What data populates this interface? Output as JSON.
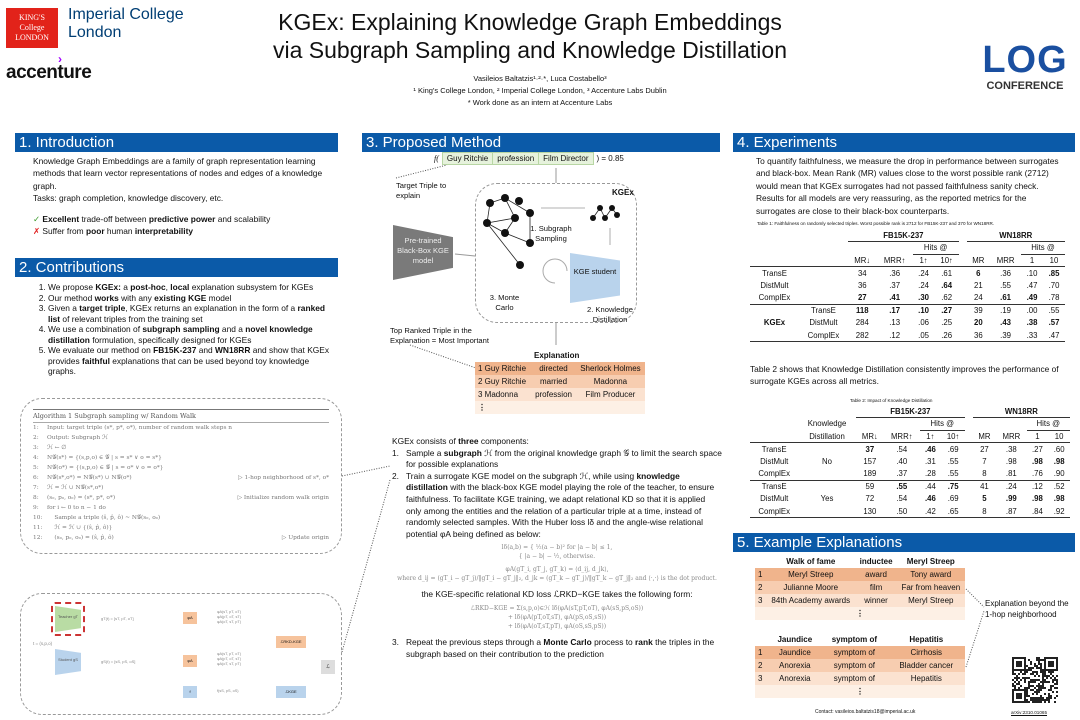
{
  "header": {
    "logos": {
      "kings": "KING'S College LONDON",
      "imperial": "Imperial College London",
      "accenture": "accenture",
      "log": "LOG",
      "log_sub": "CONFERENCE"
    },
    "title_line1": "KGEx: Explaining Knowledge Graph Embeddings",
    "title_line2": "via Subgraph Sampling and Knowledge Distillation",
    "authors": "Vasileios Baltatzis¹·²·*, Luca Costabello³",
    "affiliations": "¹ King's College London, ² Imperial College London, ³ Accenture Labs Dublin",
    "note": "* Work done as an intern at Accenture Labs"
  },
  "intro": {
    "title": "1. Introduction",
    "para": "Knowledge Graph Embeddings are a family of graph representation learning methods that learn vector representations of nodes and edges of a knowledge graph.",
    "tasks": "Tasks: graph completion, knowledge discovery, etc.",
    "pro": [
      {
        "t": "Excellent",
        "b": true
      },
      {
        "t": " trade-off between "
      },
      {
        "t": "predictive power",
        "b": true
      },
      {
        "t": " and scalability"
      }
    ],
    "con": [
      {
        "t": "Suffer from "
      },
      {
        "t": "poor",
        "b": true
      },
      {
        "t": " human "
      },
      {
        "t": "interpretability",
        "b": true
      }
    ],
    "check_color": "#3a9a2a",
    "cross_color": "#e02020"
  },
  "contrib": {
    "title": "2. Contributions",
    "items": [
      [
        {
          "t": "We propose "
        },
        {
          "t": "KGEx:",
          "b": true
        },
        {
          "t": " a "
        },
        {
          "t": "post-hoc",
          "b": true
        },
        {
          "t": ", "
        },
        {
          "t": "local",
          "b": true
        },
        {
          "t": " explanation subsystem for KGEs"
        }
      ],
      [
        {
          "t": "Our method "
        },
        {
          "t": "works",
          "b": true
        },
        {
          "t": " with any "
        },
        {
          "t": "existing KGE",
          "b": true
        },
        {
          "t": " model"
        }
      ],
      [
        {
          "t": "Given a "
        },
        {
          "t": "target triple",
          "b": true
        },
        {
          "t": ", KGEx returns an explanation in the form of a "
        },
        {
          "t": "ranked list",
          "b": true
        },
        {
          "t": " of relevant triples from the training set"
        }
      ],
      [
        {
          "t": "We use a combination of "
        },
        {
          "t": "subgraph sampling",
          "b": true
        },
        {
          "t": " and a "
        },
        {
          "t": "novel knowledge distillation",
          "b": true
        },
        {
          "t": " formulation, specifically designed for KGEs"
        }
      ],
      [
        {
          "t": "We evaluate our method on "
        },
        {
          "t": "FB15K-237",
          "b": true
        },
        {
          "t": " and "
        },
        {
          "t": "WN18RR",
          "b": true
        },
        {
          "t": " and show that KGEx provides "
        },
        {
          "t": "faithful",
          "b": true
        },
        {
          "t": " explanations that  can be used beyond toy knowledge graphs."
        }
      ]
    ]
  },
  "algorithm": {
    "title": "Algorithm 1 Subgraph sampling w/ Random Walk",
    "lines": [
      {
        "n": "1:",
        "t": "Input: target triple (s*, p*, o*), number of random walk steps n",
        "c": ""
      },
      {
        "n": "2:",
        "t": "Output: Subgraph ℋ",
        "c": ""
      },
      {
        "n": "3:",
        "t": "ℋ ← ∅",
        "c": ""
      },
      {
        "n": "4:",
        "t": "N𝒢(s*) = {(s,p,o) ∈ 𝒢 | s = s* ∨ o = s*}",
        "c": ""
      },
      {
        "n": "5:",
        "t": "N𝒢(o*) = {(s,p,o) ∈ 𝒢 | s = o* ∨ o = o*}",
        "c": ""
      },
      {
        "n": "6:",
        "t": "N𝒢(s*,o*) = N𝒢(s*) ∪ N𝒢(o*)",
        "c": "▷ 1-hop neighborhood of s*, o*"
      },
      {
        "n": "7:",
        "t": "ℋ = ℋ ∪ N𝒢(s*,o*)",
        "c": ""
      },
      {
        "n": "8:",
        "t": "(sₒ, pₒ, oₒ) = (s*, p*, o*)",
        "c": "▷ Initialize random walk origin"
      },
      {
        "n": "9:",
        "t": "for i ← 0 to n − 1 do",
        "c": ""
      },
      {
        "n": "10:",
        "t": "    Sample a triple (ŝ, p̂, ô) ~ N𝒢(sₒ, oₒ)",
        "c": ""
      },
      {
        "n": "11:",
        "t": "    ℋ = ℋ ∪ {(ŝ, p̂, ô)}",
        "c": ""
      },
      {
        "n": "12:",
        "t": "    (sₒ, pₒ, oₒ) = (ŝ, p̂, ô)",
        "c": "▷ Update origin"
      }
    ]
  },
  "kd_diagram": {
    "teacher": "Teacher gT",
    "student": "Student gS",
    "input": "t = (s,p,o)",
    "gt": "gT(t) = [sT, pT, oT]",
    "gs": "gS(t) = [sS, pS, oS]",
    "phi": "φA",
    "f": "f",
    "fs": "f(sS, pS, oS)",
    "lrkd": "ℒRKD-KGE",
    "lkge": "ℒKGE",
    "l": "ℒ",
    "phi_lines": [
      "φA(sT, pT, oT)",
      "φA(pT, oT, sT)",
      "φA(oT, sT, pT)"
    ],
    "teacher_color": "#b9dca4",
    "student_color": "#b9d3ec",
    "op_color": "#f6c39c"
  },
  "method": {
    "title": "3. Proposed Method",
    "f_prefix": "f(",
    "triple": [
      "Guy Ritchie",
      "profession",
      "Film Director"
    ],
    "f_suffix": ") = 0.85",
    "target_label": "Target Triple to explain",
    "kgex": "KGEx",
    "blackbox": "Pre-trained Black-Box KGE model",
    "student": "KGE student",
    "step1": "1. Subgraph Sampling",
    "step2": "2. Knowledge Distillation",
    "step3": "3. Monte Carlo",
    "top_ranked": "Top Ranked Triple in the Explanation = Most Important",
    "explanation_title": "Explanation",
    "explanation": [
      [
        "1 Guy Ritchie",
        "directed",
        "Sherlock Holmes"
      ],
      [
        "2 Guy Ritchie",
        "married",
        "Madonna"
      ],
      [
        "3   Madonna",
        "profession",
        "Film Producer"
      ]
    ],
    "ellipsis": "⋮",
    "intro": [
      {
        "t": "KGEx consists of "
      },
      {
        "t": "three",
        "b": true
      },
      {
        "t": " components:"
      }
    ],
    "step_texts": [
      [
        {
          "t": "Sample a "
        },
        {
          "t": "subgraph",
          "b": true
        },
        {
          "t": " ℋ from the original knowledge graph 𝒢 to limit the search space for possible explanations"
        }
      ],
      [
        {
          "t": "Train a surrogate KGE model on the subgraph ℋ, while using "
        },
        {
          "t": "knowledge distillation",
          "b": true
        },
        {
          "t": " with the black-box KGE model playing the role of the teacher, to ensure faithfulness. To facilitate KGE training, we adapt relational KD so that it is applied only among the entities and the relation of a particular triple at a time, instead of randomly selected samples. With the Huber loss lδ and the angle-wise relational potential φA being defined as below:"
        }
      ],
      [
        {
          "t": "Repeat the previous steps through a "
        },
        {
          "t": "Monte Carlo",
          "b": true
        },
        {
          "t": " process to "
        },
        {
          "t": "rank",
          "b": true
        },
        {
          "t": " the triples in the subgraph based on their contribution to the prediction"
        }
      ]
    ],
    "eq1": [
      "lδ(a,b) = { ½(a − b)²   for |a − b| ≤ 1,",
      "           { |a − b| − ½,  otherwise."
    ],
    "eq2": [
      "φA(gT_i, gT_j, gT_k) = ⟨d_ij, d_jk⟩,",
      "where d_ij = (gT_i − gT_j)/‖gT_i − gT_j‖₂, d_jk = (gT_k − gT_j)/‖gT_k − gT_j‖₂ and ⟨·,·⟩ is the dot product."
    ],
    "kd_loss_text": "the KGE-specific relational KD loss ℒRKD−KGE takes the following form:",
    "eq3": [
      "ℒRKD−KGE = Σ(s,p,o)∈ℋ lδ(φA(sT,pT,oT), φA(sS,pS,oS))",
      "+ lδ(φA(pT,oT,sT), φA(pS,oS,sS))",
      "+ lδ(φA(oT,sT,pT), φA(oS,sS,pS))"
    ]
  },
  "experiments": {
    "title": "4. Experiments",
    "para": "To quantify faithfulness, we measure the drop in performance between surrogates and black-box. Mean Rank (MR) values close to the worst possible rank (2712) would mean that KGEx surrogates had not passed faithfulness sanity check. Results for all models are very reassuring, as the reported metrics for the surrogates are close to their black-box counterparts.",
    "table1": {
      "caption": "Table 1: Faithfulness on randomly selected triples. Worst possible rank is 2712 for FB15K-237 and 370 for WN18RR.",
      "datasets": [
        "FB15K-237",
        "WN18RR"
      ],
      "hits": "Hits @",
      "cols": [
        "MR↓",
        "MRR↑",
        "1↑",
        "10↑",
        "MR",
        "MRR",
        "1",
        "10"
      ],
      "group": "KGEx",
      "rows": [
        {
          "m": "TransE",
          "g": "",
          "c": [
            [
              "34"
            ],
            [
              ".36"
            ],
            [
              ".24"
            ],
            [
              ".61"
            ],
            [
              "6",
              1
            ],
            [
              ".36"
            ],
            [
              ".10"
            ],
            [
              ".85",
              1
            ]
          ]
        },
        {
          "m": "DistMult",
          "g": "",
          "c": [
            [
              "36"
            ],
            [
              ".37"
            ],
            [
              ".24"
            ],
            [
              ".64",
              1
            ],
            [
              "21"
            ],
            [
              ".55"
            ],
            [
              ".47"
            ],
            [
              ".70"
            ]
          ]
        },
        {
          "m": "ComplEx",
          "g": "",
          "c": [
            [
              "27",
              1
            ],
            [
              ".41",
              1
            ],
            [
              ".30",
              1
            ],
            [
              ".62"
            ],
            [
              "24"
            ],
            [
              ".61",
              1
            ],
            [
              ".49",
              1
            ],
            [
              ".78"
            ]
          ]
        },
        {
          "m": "TransE",
          "g": "KGEx",
          "c": [
            [
              "118",
              1
            ],
            [
              ".17",
              1
            ],
            [
              ".10",
              1
            ],
            [
              ".27",
              1
            ],
            [
              "39"
            ],
            [
              ".19"
            ],
            [
              ".00"
            ],
            [
              ".55"
            ]
          ]
        },
        {
          "m": "DistMult",
          "g": "KGEx",
          "c": [
            [
              "284"
            ],
            [
              ".13"
            ],
            [
              ".06"
            ],
            [
              ".25"
            ],
            [
              "20",
              1
            ],
            [
              ".43",
              1
            ],
            [
              ".38",
              1
            ],
            [
              ".57",
              1
            ]
          ]
        },
        {
          "m": "ComplEx",
          "g": "KGEx",
          "c": [
            [
              "282"
            ],
            [
              ".12"
            ],
            [
              ".05"
            ],
            [
              ".26"
            ],
            [
              "36"
            ],
            [
              ".39"
            ],
            [
              ".33"
            ],
            [
              ".47"
            ]
          ]
        }
      ]
    },
    "para2": "Table 2 shows that Knowledge Distillation consistently improves the performance of surrogate KGEs across all metrics.",
    "table2": {
      "caption": "Table 2: Impact of Knowledge Distillation",
      "datasets": [
        "FB15K-237",
        "WN18RR"
      ],
      "hits": "Hits @",
      "kd_header": [
        "Knowledge",
        "Distillation"
      ],
      "cols": [
        "MR↓",
        "MRR↑",
        "1↑",
        "10↑",
        "MR",
        "MRR",
        "1",
        "10"
      ],
      "rows": [
        {
          "m": "TransE",
          "kd": "",
          "c": [
            [
              "37",
              1
            ],
            [
              ".54"
            ],
            [
              ".46",
              1
            ],
            [
              ".69"
            ],
            [
              "27"
            ],
            [
              ".38"
            ],
            [
              ".27"
            ],
            [
              ".60"
            ]
          ]
        },
        {
          "m": "DistMult",
          "kd": "No",
          "c": [
            [
              "157"
            ],
            [
              ".40"
            ],
            [
              ".31"
            ],
            [
              ".55"
            ],
            [
              "7"
            ],
            [
              ".98"
            ],
            [
              ".98",
              1
            ],
            [
              ".98",
              1
            ]
          ]
        },
        {
          "m": "ComplEx",
          "kd": "",
          "c": [
            [
              "189"
            ],
            [
              ".37"
            ],
            [
              ".28"
            ],
            [
              ".55"
            ],
            [
              "8"
            ],
            [
              ".81"
            ],
            [
              ".76"
            ],
            [
              ".90"
            ]
          ]
        },
        {
          "m": "TransE",
          "kd": "",
          "c": [
            [
              "59"
            ],
            [
              ".55",
              1
            ],
            [
              ".44"
            ],
            [
              ".75",
              1
            ],
            [
              "41"
            ],
            [
              ".24"
            ],
            [
              ".12"
            ],
            [
              ".52"
            ]
          ]
        },
        {
          "m": "DistMult",
          "kd": "Yes",
          "c": [
            [
              "72"
            ],
            [
              ".54"
            ],
            [
              ".46",
              1
            ],
            [
              ".69"
            ],
            [
              "5",
              1
            ],
            [
              ".99",
              1
            ],
            [
              ".98",
              1
            ],
            [
              ".98",
              1
            ]
          ]
        },
        {
          "m": "ComplEx",
          "kd": "",
          "c": [
            [
              "130"
            ],
            [
              ".50"
            ],
            [
              ".42"
            ],
            [
              ".65"
            ],
            [
              "8"
            ],
            [
              ".87"
            ],
            [
              ".84"
            ],
            [
              ".92"
            ]
          ]
        }
      ]
    }
  },
  "examples": {
    "title": "5. Example Explanations",
    "ex1": {
      "head": [
        "Walk of fame",
        "inductee",
        "Meryl Streep"
      ],
      "rows": [
        [
          "1",
          "Meryl Streep",
          "award",
          "Tony award"
        ],
        [
          "2",
          "Julianne Moore",
          "film",
          "Far from heaven"
        ],
        [
          "3",
          "84th Academy awards",
          "winner",
          "Meryl Streep"
        ]
      ]
    },
    "ex2": {
      "head": [
        "Jaundice",
        "symptom of",
        "Hepatitis"
      ],
      "rows": [
        [
          "1",
          "Jaundice",
          "symptom of",
          "Cirrhosis"
        ],
        [
          "2",
          "Anorexia",
          "symptom of",
          "Bladder cancer"
        ],
        [
          "3",
          "Anorexia",
          "symptom of",
          "Hepatitis"
        ]
      ]
    },
    "ellipsis": "⋮",
    "beyond": "Explanation beyond the 1-hop neighborhood"
  },
  "footer": {
    "contact": "Contact: vasileios.baltatzis18@imperial.ac.uk",
    "arxiv": "arXiv:2310.01065"
  }
}
